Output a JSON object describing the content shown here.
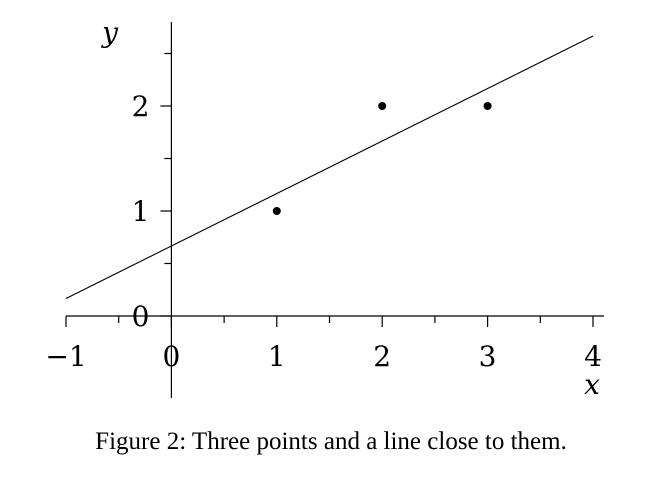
{
  "chart_data": {
    "type": "scatter",
    "xlabel": "x",
    "ylabel": "y",
    "xlim": [
      -1,
      4
    ],
    "ylim": [
      0,
      2.65
    ],
    "xticks": [
      {
        "value": -1,
        "label": "−1"
      },
      {
        "value": 0,
        "label": "0"
      },
      {
        "value": 1,
        "label": "1"
      },
      {
        "value": 2,
        "label": "2"
      },
      {
        "value": 3,
        "label": "3"
      },
      {
        "value": 4,
        "label": "4"
      }
    ],
    "yticks": [
      {
        "value": 0,
        "label": "0"
      },
      {
        "value": 1,
        "label": "1"
      },
      {
        "value": 2,
        "label": "2"
      }
    ],
    "points": [
      {
        "x": 1,
        "y": 1
      },
      {
        "x": 2,
        "y": 2
      },
      {
        "x": 3,
        "y": 2
      }
    ],
    "line": {
      "slope": 0.5,
      "intercept": 0.6667,
      "x_from": -1,
      "x_to": 4
    },
    "grid": false
  },
  "caption": "Figure 2: Three points and a line close to them."
}
